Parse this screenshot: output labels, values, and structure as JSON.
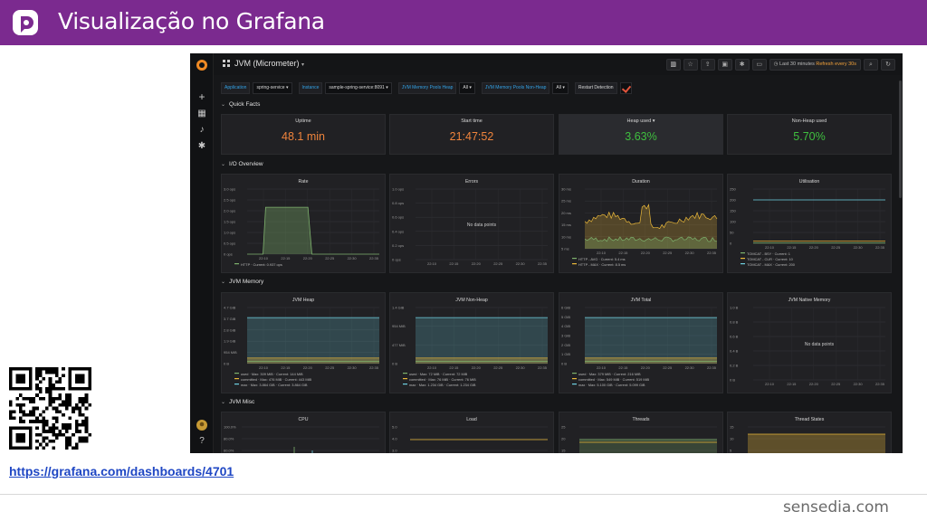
{
  "slide": {
    "title": "Visualização no Grafana",
    "brand": "sensedia.com",
    "link": "https://grafana.com/dashboards/4701"
  },
  "grafana": {
    "dashboard_title": "JVM (Micrometer)",
    "time_range": "Last 30 minutes",
    "refresh": "Refresh every 30s",
    "variables": [
      {
        "label": "Application",
        "value": "spring-service"
      },
      {
        "label": "Instance",
        "value": "sample-spring-service:8091"
      },
      {
        "label": "JVM Memory Pools Heap",
        "value": "All"
      },
      {
        "label": "JVM Memory Pools Non-Heap",
        "value": "All"
      },
      {
        "label": "Restart Detection",
        "value": ""
      }
    ],
    "rows": {
      "quick_facts": "Quick Facts",
      "io_overview": "I/O Overview",
      "jvm_memory": "JVM Memory",
      "jvm_misc": "JVM Misc"
    },
    "stats": [
      {
        "title": "Uptime",
        "value": "48.1 min",
        "color": "#ef843c"
      },
      {
        "title": "Start time",
        "value": "21:47:52",
        "color": "#ef843c"
      },
      {
        "title": "Heap used",
        "value": "3.63%",
        "color": "#3fbf3f"
      },
      {
        "title": "Non-Heap used",
        "value": "5.70%",
        "color": "#3fbf3f"
      }
    ],
    "io_panels": {
      "rate": {
        "title": "Rate",
        "yticks": [
          "3.0 ops",
          "2.5 ops",
          "2.0 ops",
          "1.5 ops",
          "1.0 ops",
          "0.5 ops",
          "0 ops"
        ],
        "xticks": [
          "22:10",
          "22:15",
          "22:20",
          "22:25",
          "22:30",
          "22:35"
        ],
        "legend": [
          "HTTP · Current: 0.937 ops"
        ]
      },
      "errors": {
        "title": "Errors",
        "yticks": [
          "1.0 ops",
          "0.8 ops",
          "0.6 ops",
          "0.4 ops",
          "0.2 ops",
          "0 ops"
        ],
        "xticks": [
          "22:10",
          "22:15",
          "22:20",
          "22:25",
          "22:30",
          "22:35"
        ],
        "nodata": "No data points"
      },
      "duration": {
        "title": "Duration",
        "yticks": [
          "30 ms",
          "25 ms",
          "20 ms",
          "15 ms",
          "10 ms",
          "5 ms"
        ],
        "xticks": [
          "22:10",
          "22:15",
          "22:20",
          "22:25",
          "22:30",
          "22:35"
        ],
        "legend": [
          "HTTP - AVG · Current: 5.4 ms",
          "HTTP - MAX · Current: 8.5 ms"
        ]
      },
      "utilisation": {
        "title": "Utilisation",
        "yticks": [
          "250",
          "200",
          "150",
          "100",
          "50",
          "0"
        ],
        "xticks": [
          "22:10",
          "22:15",
          "22:20",
          "22:25",
          "22:30",
          "22:35"
        ],
        "legend": [
          "TOMCAT - BSY · Current: 1",
          "TOMCAT - CUR · Current: 10",
          "TOMCAT - MAX · Current: 200"
        ]
      }
    },
    "memory_panels": {
      "heap": {
        "title": "JVM Heap",
        "yticks": [
          "4.7 GiB",
          "3.7 GiB",
          "2.8 GiB",
          "1.9 GiB",
          "954 MiB",
          "0 B"
        ],
        "xticks": [
          "22:10",
          "22:15",
          "22:20",
          "22:25",
          "22:30",
          "22:35"
        ],
        "legend": [
          "used · Max: 309 MiB · Current: 144 MiB",
          "committed · Max: 476 MiB · Current: 443 MiB",
          "max · Max: 3.864 GiB · Current: 3.864 GiB"
        ]
      },
      "nonheap": {
        "title": "JVM Non-Heap",
        "yticks": [
          "1.4 GiB",
          "954 MiB",
          "477 MiB",
          "0 B"
        ],
        "xticks": [
          "22:10",
          "22:15",
          "22:20",
          "22:25",
          "22:30",
          "22:35"
        ],
        "legend": [
          "used · Max: 72 MiB · Current: 72 MiB",
          "committed · Max: 76 MiB · Current: 76 MiB",
          "max · Max: 1.234 GiB · Current: 1.234 GiB"
        ]
      },
      "total": {
        "title": "JVM Total",
        "yticks": [
          "6 GiB",
          "5 GiB",
          "4 GiB",
          "3 GiB",
          "2 GiB",
          "1 GiB",
          "0 B"
        ],
        "xticks": [
          "22:10",
          "22:15",
          "22:20",
          "22:25",
          "22:30",
          "22:35"
        ],
        "legend": [
          "used · Max: 379 MiB · Current: 216 MiB",
          "committed · Max: 549 MiB · Current: 519 MiB",
          "max · Max: 5.100 GiB · Current: 5.099 GiB"
        ]
      },
      "native": {
        "title": "JVM Native Memory",
        "yticks": [
          "1.0 B",
          "0.8 B",
          "0.6 B",
          "0.4 B",
          "0.2 B",
          "0 B"
        ],
        "xticks": [
          "22:10",
          "22:15",
          "22:20",
          "22:25",
          "22:30",
          "22:35"
        ],
        "nodata": "No data points"
      }
    },
    "misc_panels": [
      {
        "title": "CPU",
        "yticks": [
          "100.0%",
          "80.0%",
          "60.0%"
        ]
      },
      {
        "title": "Load",
        "yticks": [
          "5.0",
          "4.0",
          "3.0"
        ]
      },
      {
        "title": "Threads",
        "yticks": [
          "25",
          "20",
          "15"
        ]
      },
      {
        "title": "Thread States",
        "yticks": [
          "15",
          "10",
          "5"
        ]
      }
    ],
    "colors": {
      "green": "#7eb26d",
      "yellow": "#eab839",
      "blue": "#6ed0e0",
      "orange": "#ef843c"
    }
  }
}
